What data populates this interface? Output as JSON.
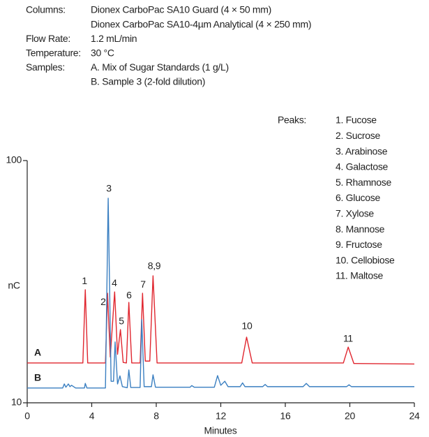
{
  "conditions": [
    {
      "label": "Columns:",
      "lines": [
        "Dionex CarboPac SA10 Guard (4 × 50 mm)",
        "Dionex CarboPac SA10-4µm Analytical (4 × 250 mm)"
      ]
    },
    {
      "label": "Flow Rate:",
      "lines": [
        "1.2 mL/min"
      ]
    },
    {
      "label": "Temperature:",
      "lines": [
        "30 °C"
      ]
    },
    {
      "label": "Samples:",
      "lines": [
        "A. Mix of Sugar Standards (1 g/L)",
        "B. Sample 3 (2-fold dilution)"
      ]
    }
  ],
  "chart_data": {
    "type": "line",
    "xlabel": "Minutes",
    "ylabel": "nC",
    "xlim": [
      0,
      24
    ],
    "xticks": [
      0,
      4,
      8,
      12,
      16,
      20,
      24
    ],
    "ylim": [
      10,
      100
    ],
    "yticks": [
      10,
      100
    ],
    "peaks_title": "Peaks:",
    "peaks": [
      "1. Fucose",
      "2. Sucrose",
      "3. Arabinose",
      "4. Galactose",
      "5. Rhamnose",
      "6. Glucose",
      "7. Xylose",
      "8. Mannose",
      "9. Fructose",
      "10. Cellobiose",
      "11. Maltose"
    ],
    "series": [
      {
        "name": "A",
        "color": "#e0262f",
        "x": [
          0,
          3.45,
          3.6,
          3.75,
          4.85,
          4.98,
          5.15,
          5.42,
          5.6,
          5.78,
          5.95,
          6.15,
          6.3,
          6.48,
          7.0,
          7.15,
          7.32,
          7.6,
          7.8,
          8.05,
          13.3,
          13.6,
          13.95,
          19.6,
          19.9,
          20.25,
          24
        ],
        "values": [
          24.8,
          24.8,
          52.0,
          24.8,
          24.8,
          50.7,
          27,
          51.2,
          28,
          37.2,
          25,
          24.8,
          47.3,
          24.8,
          24.8,
          50.7,
          25.5,
          25.5,
          57.2,
          24.8,
          24.8,
          34.4,
          24.8,
          24.8,
          30.7,
          24.6,
          24.4
        ]
      },
      {
        "name": "B",
        "color": "#3a7fc1",
        "x": [
          0,
          2.2,
          2.3,
          2.4,
          2.55,
          2.65,
          2.75,
          3.0,
          3.55,
          3.6,
          3.7,
          4.85,
          5.02,
          5.2,
          5.35,
          5.45,
          5.6,
          5.75,
          5.9,
          6.2,
          6.3,
          6.42,
          7.0,
          7.1,
          7.25,
          7.7,
          7.8,
          7.95,
          10.1,
          10.2,
          10.35,
          11.6,
          11.8,
          12.0,
          12.25,
          12.45,
          13.2,
          13.35,
          13.5,
          14.6,
          14.75,
          14.9,
          17.1,
          17.3,
          17.5,
          19.8,
          19.95,
          20.1,
          24
        ],
        "values": [
          15.5,
          15.5,
          17,
          15.8,
          17,
          16,
          16.5,
          15.5,
          15.5,
          17.2,
          15.5,
          15.5,
          86.0,
          18,
          18,
          32.6,
          17,
          20,
          16,
          15.6,
          22.2,
          15.7,
          15.7,
          40.9,
          16,
          16,
          20.4,
          15.8,
          15.8,
          16.4,
          15.8,
          15.8,
          20.1,
          16.5,
          18,
          16,
          16,
          17.4,
          16,
          16,
          16.8,
          16,
          16,
          17.2,
          16,
          16,
          16.7,
          16,
          16
        ]
      }
    ],
    "annotations": [
      {
        "text": "1",
        "x": 3.55,
        "y": 55.1
      },
      {
        "text": "2",
        "x": 4.71,
        "y": 47.3
      },
      {
        "text": "3",
        "x": 5.06,
        "y": 89.4
      },
      {
        "text": "4",
        "x": 5.4,
        "y": 54.3
      },
      {
        "text": "5",
        "x": 5.84,
        "y": 40.1
      },
      {
        "text": "6",
        "x": 6.31,
        "y": 49.7
      },
      {
        "text": "7",
        "x": 7.18,
        "y": 53.8
      },
      {
        "text": "8,9",
        "x": 7.87,
        "y": 60.6
      },
      {
        "text": "10",
        "x": 13.62,
        "y": 38.3
      },
      {
        "text": "11",
        "x": 19.89,
        "y": 33.6
      }
    ]
  }
}
